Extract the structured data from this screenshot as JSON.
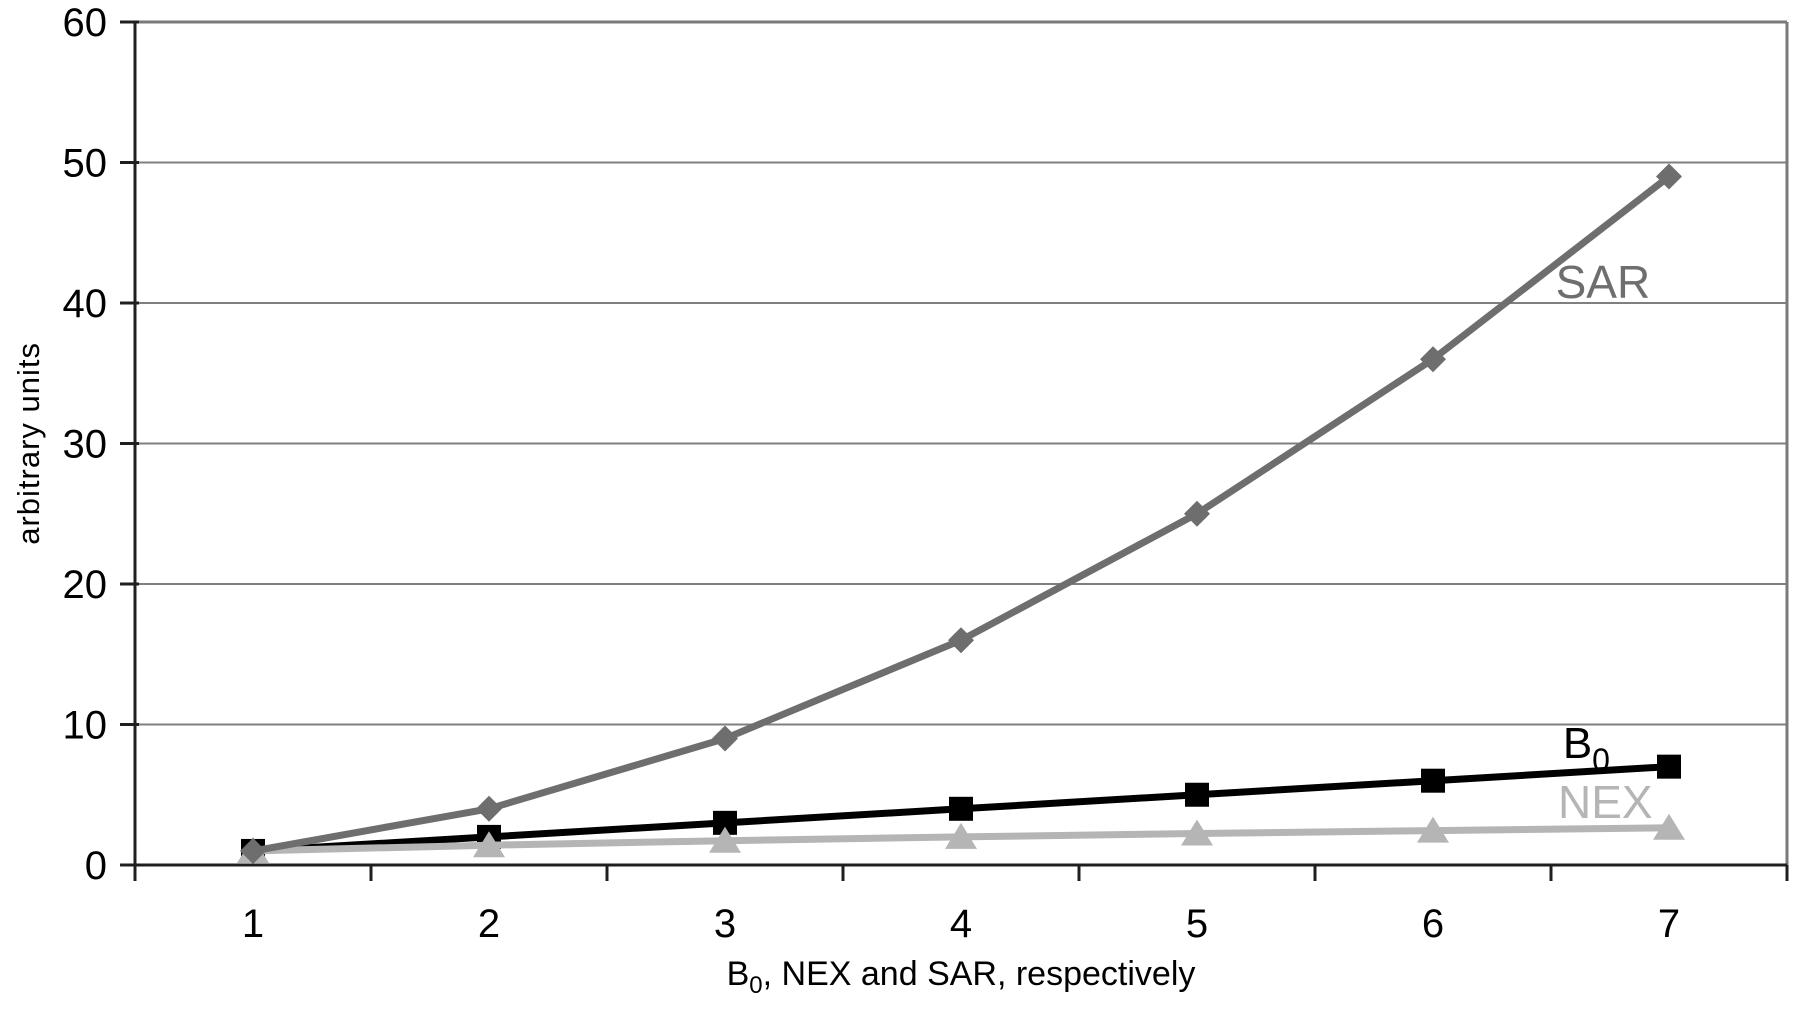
{
  "chart_data": {
    "type": "line",
    "title": "",
    "ylabel": "arbitrary units",
    "xlabel_parts": {
      "base": "B",
      "sub": "0",
      "rest": ", NEX and SAR, respectively"
    },
    "categories": [
      1,
      2,
      3,
      4,
      5,
      6,
      7
    ],
    "ylim": [
      0,
      60
    ],
    "yticks": [
      0,
      10,
      20,
      30,
      40,
      50,
      60
    ],
    "grid": "horizontal gridlines every 10 units",
    "legend": "none (inline series labels at right side of lines)",
    "axis_color": "#1f1f1f",
    "grid_color": "#7f7f7f",
    "border_color": "#7a7a7a",
    "series": [
      {
        "name": "B0",
        "label_base": "B",
        "label_sub": "0",
        "values": [
          1,
          2,
          3,
          4,
          5,
          6,
          7
        ],
        "color": "#000000",
        "marker": "square",
        "label_color": "#000000",
        "label_font_size": 44,
        "label_anchor": {
          "x": 6.65,
          "y": 8.7
        }
      },
      {
        "name": "NEX",
        "label_base": "NEX",
        "label_sub": "",
        "values": [
          1,
          1.41,
          1.73,
          2,
          2.24,
          2.45,
          2.65
        ],
        "color": "#b5b5b5",
        "marker": "triangle",
        "label_color": "#b5b5b5",
        "label_font_size": 46,
        "label_anchor": {
          "x": 6.73,
          "y": 4.5
        }
      },
      {
        "name": "SAR",
        "label_base": "SAR",
        "label_sub": "",
        "values": [
          1,
          4,
          9,
          16,
          25,
          36,
          49
        ],
        "color": "#6e6e6e",
        "marker": "diamond",
        "label_color": "#6e6e6e",
        "label_font_size": 46,
        "label_anchor": {
          "x": 6.72,
          "y": 41.5
        }
      }
    ]
  }
}
